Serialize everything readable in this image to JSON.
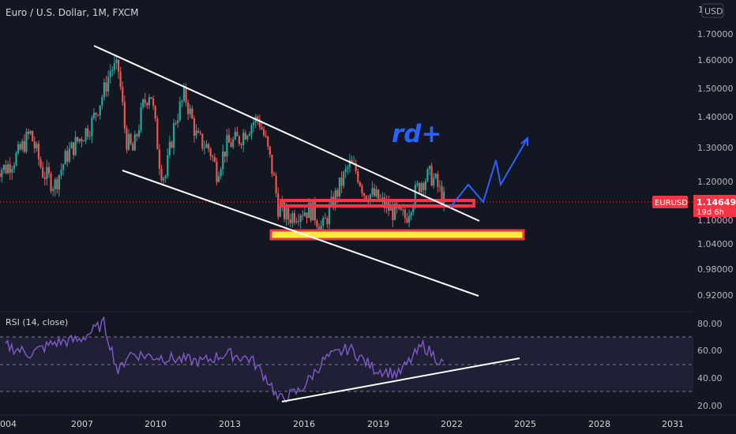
{
  "header": {
    "symbol_legend": "Euro / U.S. Dollar, 1M, FXCM",
    "currency_button": "USD",
    "currency_partial": "1"
  },
  "annotation": {
    "text": "rd+"
  },
  "price_label": {
    "symbol": "EURUSD",
    "value": "1.14649",
    "countdown": "19d 6h"
  },
  "rsi_panel": {
    "legend": "RSI (14, close)"
  },
  "colors": {
    "background": "#131722",
    "up_candle": "#26a69a",
    "down_candle": "#ef5350",
    "trendline": "#ffffff",
    "projection": "#2962ff",
    "resistance_box": "#f23645",
    "support_box_fill": "#ffeb3b",
    "support_box_border": "#f23645",
    "rsi_line": "#7e57c2",
    "rsi_band": "#7e57c2",
    "price_tag": "#f23645"
  },
  "chart_data": [
    {
      "type": "candlestick",
      "title": "Euro / U.S. Dollar, 1M, FXCM",
      "ylabel": "USD",
      "y_scale": "log",
      "ylim": [
        0.9,
        1.85
      ],
      "y_ticks": [
        "1.70000",
        "1.60000",
        "1.50000",
        "1.40000",
        "1.30000",
        "1.20000",
        "1.10000",
        "1.04000",
        "0.98000",
        "0.92000"
      ],
      "x_ticks": [
        "2004",
        "2007",
        "2010",
        "2013",
        "2016",
        "2019",
        "2022",
        "2025",
        "2028",
        "2031"
      ],
      "last_price": 1.14649,
      "series": [
        {
          "name": "EURUSD",
          "x": [
            "2004",
            "2004.5",
            "2005",
            "2005.5",
            "2006",
            "2006.5",
            "2007",
            "2007.5",
            "2008",
            "2008.3",
            "2008.6",
            "2008.9",
            "2009.2",
            "2009.6",
            "2009.9",
            "2010.3",
            "2010.5",
            "2010.9",
            "2011.3",
            "2011.8",
            "2012.3",
            "2012.6",
            "2013",
            "2013.5",
            "2014",
            "2014.3",
            "2014.6",
            "2014.9",
            "2015.1",
            "2015.5",
            "2016",
            "2016.5",
            "2016.9",
            "2017.5",
            "2018",
            "2018.3",
            "2018.6",
            "2019",
            "2019.5",
            "2019.9",
            "2020.3",
            "2020.5",
            "2020.9",
            "2021.3",
            "2021.5",
            "2021.9"
          ],
          "close": [
            1.23,
            1.27,
            1.34,
            1.22,
            1.18,
            1.27,
            1.32,
            1.37,
            1.48,
            1.57,
            1.56,
            1.32,
            1.28,
            1.43,
            1.49,
            1.23,
            1.2,
            1.38,
            1.47,
            1.32,
            1.29,
            1.22,
            1.3,
            1.32,
            1.37,
            1.39,
            1.31,
            1.21,
            1.12,
            1.09,
            1.11,
            1.11,
            1.06,
            1.16,
            1.24,
            1.22,
            1.16,
            1.15,
            1.12,
            1.1,
            1.09,
            1.13,
            1.19,
            1.21,
            1.19,
            1.13
          ]
        }
      ],
      "lines": [
        {
          "name": "channel-top",
          "x": [
            "2007.5",
            "2022"
          ],
          "y": [
            1.65,
            1.088
          ]
        },
        {
          "name": "channel-bottom",
          "x": [
            "2008.5",
            "2022"
          ],
          "y": [
            1.228,
            0.918
          ]
        },
        {
          "name": "projection",
          "x": [
            "2021.9",
            "2022.5",
            "2023.2",
            "2024",
            "2024.6",
            "2025"
          ],
          "y": [
            1.13,
            1.18,
            1.13,
            1.25,
            1.18,
            1.31
          ]
        }
      ],
      "zones": [
        {
          "name": "resistance",
          "y": [
            1.135,
            1.145
          ],
          "x": [
            "2015.3",
            "2022.9"
          ]
        },
        {
          "name": "support",
          "y": [
            1.042,
            1.06
          ],
          "x": [
            "2014.9",
            "2025"
          ]
        }
      ]
    },
    {
      "type": "line",
      "title": "RSI (14, close)",
      "ylim": [
        20,
        85
      ],
      "y_ticks": [
        "80.00",
        "60.00",
        "40.00",
        "20.00"
      ],
      "bands": [
        70,
        50,
        30
      ],
      "series": [
        {
          "name": "RSI",
          "x": [
            "2004",
            "2005",
            "2006",
            "2007",
            "2008",
            "2008.6",
            "2009",
            "2010",
            "2011",
            "2012",
            "2013",
            "2014",
            "2014.8",
            "2015.1",
            "2016",
            "2017",
            "2018",
            "2019",
            "2020",
            "2021",
            "2021.9"
          ],
          "values": [
            64,
            58,
            66,
            68,
            80,
            44,
            58,
            56,
            54,
            52,
            58,
            54,
            36,
            24,
            31,
            54,
            62,
            47,
            43,
            64,
            49
          ]
        }
      ],
      "lines": [
        {
          "name": "rsi-trendline",
          "x": [
            "2015.1",
            "2024.9"
          ],
          "y": [
            24,
            53
          ]
        }
      ]
    }
  ]
}
